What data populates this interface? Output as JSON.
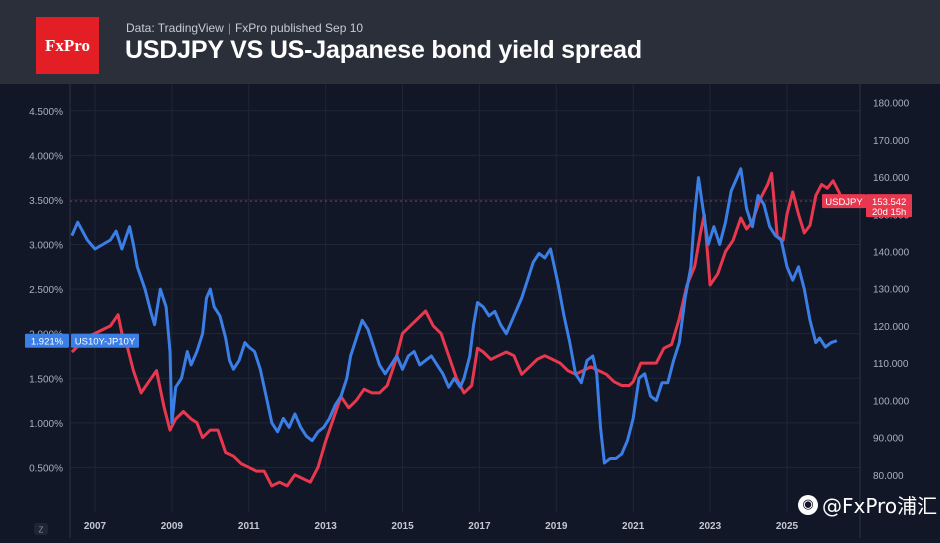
{
  "header": {
    "logo_text": "FxPro",
    "source": "Data: TradingView",
    "separator": "|",
    "published": "FxPro published Sep 10",
    "title": "USDJPY VS US-Japanese bond yield spread"
  },
  "watermark": {
    "icon": "weibo-icon",
    "text": "@FxPro浦汇"
  },
  "colors": {
    "spread": "#3b7ee6",
    "usdjpy": "#e8384f",
    "background": "#111726",
    "header": "#2a2f3a",
    "brand": "#e31e24"
  },
  "chart_data": {
    "type": "line",
    "title": "USDJPY VS US-Japanese bond yield spread",
    "x_ticks": [
      "2007",
      "2009",
      "2011",
      "2013",
      "2015",
      "2017",
      "2019",
      "2021",
      "2023",
      "2025"
    ],
    "x_axis_marker": "Z",
    "xlim": [
      2006.35,
      2026.9
    ],
    "left_axis": {
      "ticks": [
        "4.500%",
        "4.000%",
        "3.500%",
        "3.000%",
        "2.500%",
        "2.000%",
        "1.500%",
        "1.000%",
        "0.500%"
      ],
      "values": [
        4.5,
        4.0,
        3.5,
        3.0,
        2.5,
        2.0,
        1.5,
        1.0,
        0.5
      ],
      "ylim": [
        0.0,
        4.8
      ]
    },
    "right_axis": {
      "ticks": [
        "180.000",
        "170.000",
        "160.000",
        "150.000",
        "140.000",
        "130.000",
        "120.000",
        "110.000",
        "100.000",
        "90.000",
        "80.000"
      ],
      "values": [
        180,
        170,
        160,
        150,
        140,
        130,
        120,
        110,
        100,
        90,
        80
      ],
      "ylim": [
        70,
        185
      ]
    },
    "grid": true,
    "series": [
      {
        "name": "US10Y-JP10Y",
        "axis": "left",
        "last_value_label": "1.921%",
        "points": [
          [
            2006.4,
            3.1
          ],
          [
            2006.55,
            3.25
          ],
          [
            2006.8,
            3.05
          ],
          [
            2007.0,
            2.95
          ],
          [
            2007.2,
            3.0
          ],
          [
            2007.4,
            3.05
          ],
          [
            2007.55,
            3.15
          ],
          [
            2007.7,
            2.95
          ],
          [
            2007.9,
            3.2
          ],
          [
            2008.0,
            3.0
          ],
          [
            2008.1,
            2.75
          ],
          [
            2008.3,
            2.5
          ],
          [
            2008.45,
            2.25
          ],
          [
            2008.55,
            2.1
          ],
          [
            2008.7,
            2.5
          ],
          [
            2008.85,
            2.3
          ],
          [
            2008.95,
            1.8
          ],
          [
            2009.0,
            1.0
          ],
          [
            2009.1,
            1.4
          ],
          [
            2009.25,
            1.5
          ],
          [
            2009.4,
            1.8
          ],
          [
            2009.5,
            1.65
          ],
          [
            2009.65,
            1.8
          ],
          [
            2009.8,
            2.0
          ],
          [
            2009.9,
            2.4
          ],
          [
            2010.0,
            2.5
          ],
          [
            2010.1,
            2.3
          ],
          [
            2010.25,
            2.2
          ],
          [
            2010.4,
            1.95
          ],
          [
            2010.5,
            1.7
          ],
          [
            2010.6,
            1.6
          ],
          [
            2010.75,
            1.7
          ],
          [
            2010.9,
            1.9
          ],
          [
            2011.0,
            1.85
          ],
          [
            2011.15,
            1.8
          ],
          [
            2011.3,
            1.6
          ],
          [
            2011.45,
            1.3
          ],
          [
            2011.6,
            1.0
          ],
          [
            2011.75,
            0.9
          ],
          [
            2011.9,
            1.05
          ],
          [
            2012.05,
            0.95
          ],
          [
            2012.2,
            1.1
          ],
          [
            2012.35,
            0.95
          ],
          [
            2012.5,
            0.85
          ],
          [
            2012.65,
            0.8
          ],
          [
            2012.8,
            0.9
          ],
          [
            2012.95,
            0.95
          ],
          [
            2013.1,
            1.05
          ],
          [
            2013.25,
            1.2
          ],
          [
            2013.4,
            1.3
          ],
          [
            2013.55,
            1.5
          ],
          [
            2013.65,
            1.75
          ],
          [
            2013.8,
            1.95
          ],
          [
            2013.95,
            2.15
          ],
          [
            2014.1,
            2.05
          ],
          [
            2014.25,
            1.85
          ],
          [
            2014.4,
            1.65
          ],
          [
            2014.55,
            1.55
          ],
          [
            2014.7,
            1.65
          ],
          [
            2014.85,
            1.75
          ],
          [
            2015.0,
            1.6
          ],
          [
            2015.15,
            1.75
          ],
          [
            2015.3,
            1.8
          ],
          [
            2015.45,
            1.65
          ],
          [
            2015.6,
            1.7
          ],
          [
            2015.75,
            1.75
          ],
          [
            2015.9,
            1.65
          ],
          [
            2016.05,
            1.55
          ],
          [
            2016.2,
            1.4
          ],
          [
            2016.35,
            1.5
          ],
          [
            2016.5,
            1.4
          ],
          [
            2016.6,
            1.5
          ],
          [
            2016.75,
            1.75
          ],
          [
            2016.85,
            2.1
          ],
          [
            2016.95,
            2.35
          ],
          [
            2017.1,
            2.3
          ],
          [
            2017.25,
            2.2
          ],
          [
            2017.4,
            2.25
          ],
          [
            2017.55,
            2.1
          ],
          [
            2017.7,
            2.0
          ],
          [
            2017.85,
            2.15
          ],
          [
            2017.95,
            2.25
          ],
          [
            2018.1,
            2.4
          ],
          [
            2018.25,
            2.6
          ],
          [
            2018.4,
            2.8
          ],
          [
            2018.55,
            2.9
          ],
          [
            2018.7,
            2.85
          ],
          [
            2018.85,
            2.95
          ],
          [
            2018.95,
            2.75
          ],
          [
            2019.05,
            2.55
          ],
          [
            2019.2,
            2.2
          ],
          [
            2019.35,
            1.9
          ],
          [
            2019.5,
            1.55
          ],
          [
            2019.65,
            1.45
          ],
          [
            2019.8,
            1.7
          ],
          [
            2019.95,
            1.75
          ],
          [
            2020.05,
            1.55
          ],
          [
            2020.15,
            0.95
          ],
          [
            2020.25,
            0.55
          ],
          [
            2020.4,
            0.6
          ],
          [
            2020.55,
            0.6
          ],
          [
            2020.7,
            0.65
          ],
          [
            2020.85,
            0.8
          ],
          [
            2021.0,
            1.05
          ],
          [
            2021.15,
            1.5
          ],
          [
            2021.3,
            1.55
          ],
          [
            2021.45,
            1.3
          ],
          [
            2021.6,
            1.25
          ],
          [
            2021.75,
            1.45
          ],
          [
            2021.9,
            1.45
          ],
          [
            2022.05,
            1.7
          ],
          [
            2022.2,
            1.9
          ],
          [
            2022.35,
            2.4
          ],
          [
            2022.5,
            2.75
          ],
          [
            2022.6,
            3.35
          ],
          [
            2022.7,
            3.75
          ],
          [
            2022.85,
            3.3
          ],
          [
            2022.95,
            3.0
          ],
          [
            2023.1,
            3.2
          ],
          [
            2023.25,
            3.0
          ],
          [
            2023.4,
            3.25
          ],
          [
            2023.55,
            3.6
          ],
          [
            2023.7,
            3.75
          ],
          [
            2023.8,
            3.85
          ],
          [
            2023.95,
            3.4
          ],
          [
            2024.1,
            3.2
          ],
          [
            2024.25,
            3.55
          ],
          [
            2024.4,
            3.45
          ],
          [
            2024.55,
            3.2
          ],
          [
            2024.7,
            3.1
          ],
          [
            2024.85,
            3.05
          ],
          [
            2025.0,
            2.75
          ],
          [
            2025.15,
            2.6
          ],
          [
            2025.3,
            2.75
          ],
          [
            2025.45,
            2.5
          ],
          [
            2025.6,
            2.15
          ],
          [
            2025.75,
            1.9
          ],
          [
            2025.85,
            1.95
          ],
          [
            2026.0,
            1.85
          ],
          [
            2026.15,
            1.9
          ],
          [
            2026.3,
            1.921
          ]
        ]
      },
      {
        "name": "USDJPY",
        "axis": "right",
        "last_value_label": "153.542",
        "countdown_label": "20d 15h",
        "points": [
          [
            2006.4,
            113
          ],
          [
            2006.6,
            115
          ],
          [
            2006.8,
            117
          ],
          [
            2007.0,
            118
          ],
          [
            2007.2,
            119
          ],
          [
            2007.4,
            120
          ],
          [
            2007.6,
            123
          ],
          [
            2007.7,
            118
          ],
          [
            2007.85,
            114
          ],
          [
            2008.0,
            108
          ],
          [
            2008.2,
            102
          ],
          [
            2008.4,
            105
          ],
          [
            2008.6,
            108
          ],
          [
            2008.8,
            98
          ],
          [
            2008.95,
            92
          ],
          [
            2009.1,
            95
          ],
          [
            2009.3,
            97
          ],
          [
            2009.5,
            95
          ],
          [
            2009.65,
            94
          ],
          [
            2009.8,
            90
          ],
          [
            2010.0,
            92
          ],
          [
            2010.2,
            92
          ],
          [
            2010.4,
            86
          ],
          [
            2010.6,
            85
          ],
          [
            2010.8,
            83
          ],
          [
            2011.0,
            82
          ],
          [
            2011.2,
            81
          ],
          [
            2011.4,
            81
          ],
          [
            2011.6,
            77
          ],
          [
            2011.8,
            78
          ],
          [
            2012.0,
            77
          ],
          [
            2012.2,
            80
          ],
          [
            2012.4,
            79
          ],
          [
            2012.6,
            78
          ],
          [
            2012.8,
            82
          ],
          [
            2013.0,
            89
          ],
          [
            2013.2,
            95
          ],
          [
            2013.4,
            101
          ],
          [
            2013.6,
            98
          ],
          [
            2013.8,
            100
          ],
          [
            2014.0,
            103
          ],
          [
            2014.2,
            102
          ],
          [
            2014.4,
            102
          ],
          [
            2014.6,
            104
          ],
          [
            2014.8,
            110
          ],
          [
            2015.0,
            118
          ],
          [
            2015.2,
            120
          ],
          [
            2015.4,
            122
          ],
          [
            2015.6,
            124
          ],
          [
            2015.8,
            120
          ],
          [
            2016.0,
            118
          ],
          [
            2016.2,
            112
          ],
          [
            2016.4,
            106
          ],
          [
            2016.6,
            102
          ],
          [
            2016.8,
            104
          ],
          [
            2016.95,
            114
          ],
          [
            2017.1,
            113
          ],
          [
            2017.3,
            111
          ],
          [
            2017.5,
            112
          ],
          [
            2017.7,
            113
          ],
          [
            2017.9,
            112
          ],
          [
            2018.1,
            107
          ],
          [
            2018.3,
            109
          ],
          [
            2018.5,
            111
          ],
          [
            2018.7,
            112
          ],
          [
            2018.9,
            111
          ],
          [
            2019.1,
            110
          ],
          [
            2019.3,
            108
          ],
          [
            2019.5,
            107
          ],
          [
            2019.7,
            108
          ],
          [
            2019.9,
            109
          ],
          [
            2020.1,
            108
          ],
          [
            2020.3,
            107
          ],
          [
            2020.5,
            105
          ],
          [
            2020.7,
            104
          ],
          [
            2020.9,
            104
          ],
          [
            2021.0,
            105
          ],
          [
            2021.2,
            110
          ],
          [
            2021.4,
            110
          ],
          [
            2021.6,
            110
          ],
          [
            2021.8,
            114
          ],
          [
            2022.0,
            115
          ],
          [
            2022.2,
            122
          ],
          [
            2022.4,
            131
          ],
          [
            2022.6,
            136
          ],
          [
            2022.75,
            145
          ],
          [
            2022.85,
            150
          ],
          [
            2023.0,
            131
          ],
          [
            2023.2,
            134
          ],
          [
            2023.4,
            140
          ],
          [
            2023.6,
            143
          ],
          [
            2023.8,
            149
          ],
          [
            2023.95,
            146
          ],
          [
            2024.1,
            148
          ],
          [
            2024.3,
            154
          ],
          [
            2024.5,
            158
          ],
          [
            2024.6,
            161
          ],
          [
            2024.75,
            144
          ],
          [
            2024.9,
            143
          ],
          [
            2025.0,
            150
          ],
          [
            2025.15,
            156
          ],
          [
            2025.3,
            150
          ],
          [
            2025.45,
            145
          ],
          [
            2025.6,
            147
          ],
          [
            2025.75,
            155
          ],
          [
            2025.9,
            158
          ],
          [
            2026.05,
            157
          ],
          [
            2026.2,
            159
          ],
          [
            2026.35,
            156
          ],
          [
            2026.45,
            153.542
          ]
        ]
      }
    ]
  }
}
